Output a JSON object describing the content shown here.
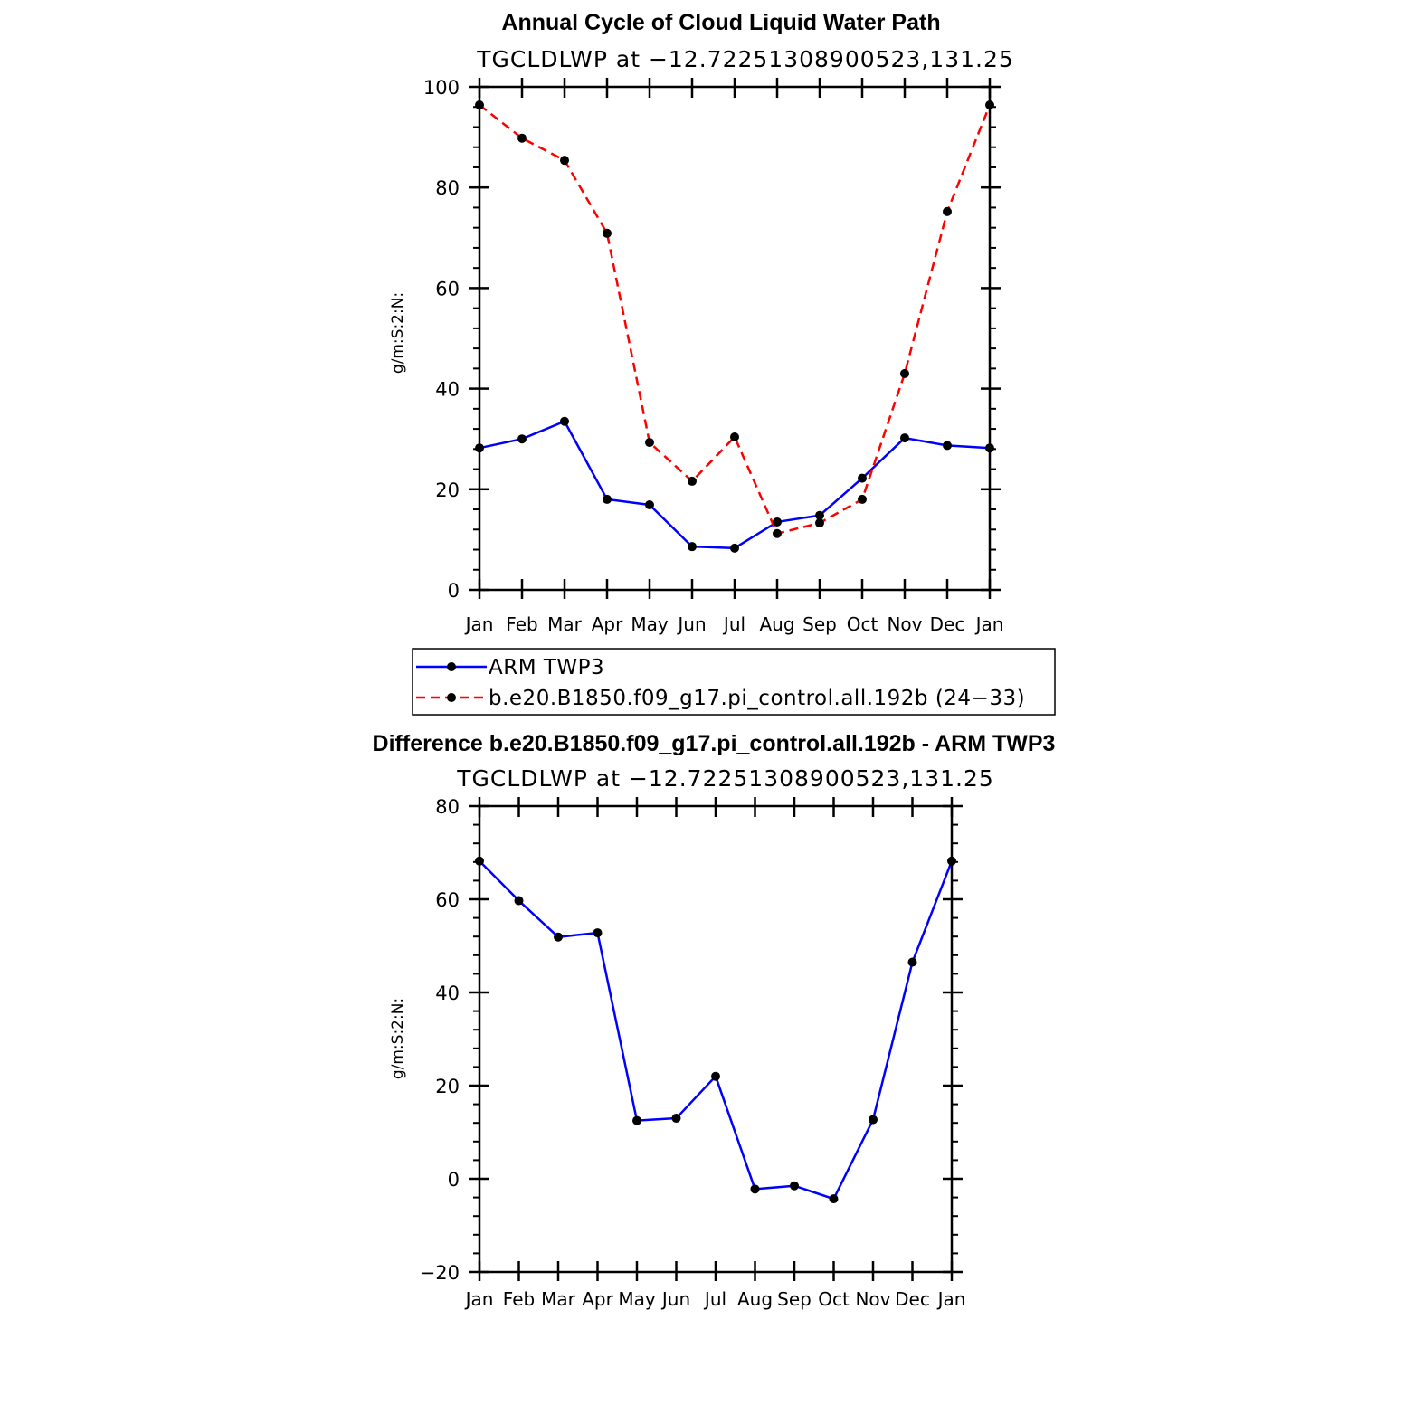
{
  "chart_data": [
    {
      "type": "line",
      "title": "Annual Cycle of Cloud Liquid Water Path",
      "subtitle": "TGCLDLWP at −12.72251308900523,131.25",
      "xlabel": "",
      "ylabel": "g/m:S:2:N:",
      "categories": [
        "Jan",
        "Feb",
        "Mar",
        "Apr",
        "May",
        "Jun",
        "Jul",
        "Aug",
        "Sep",
        "Oct",
        "Nov",
        "Dec",
        "Jan"
      ],
      "ylim": [
        0,
        100
      ],
      "yticks": [
        "0",
        "20",
        "40",
        "60",
        "80",
        "100"
      ],
      "grid": false,
      "legend_position": "below",
      "series": [
        {
          "name": "ARM TWP3",
          "color": "#0000ff",
          "dash": "solid",
          "values": [
            28.2,
            30.0,
            33.5,
            18.0,
            16.9,
            8.6,
            8.3,
            13.5,
            14.8,
            22.2,
            30.2,
            28.7,
            28.2
          ]
        },
        {
          "name": "b.e20.B1850.f09_g17.pi_control.all.192b (24−33)",
          "color": "#ff0000",
          "dash": "dashed",
          "values": [
            96.4,
            89.8,
            85.4,
            70.9,
            29.3,
            21.6,
            30.4,
            11.2,
            13.3,
            18.0,
            43.0,
            75.2,
            96.4
          ]
        }
      ]
    },
    {
      "type": "line",
      "title": "Difference b.e20.B1850.f09_g17.pi_control.all.192b - ARM TWP3",
      "subtitle": "TGCLDLWP at −12.72251308900523,131.25",
      "xlabel": "",
      "ylabel": "g/m:S:2:N:",
      "categories": [
        "Jan",
        "Feb",
        "Mar",
        "Apr",
        "May",
        "Jun",
        "Jul",
        "Aug",
        "Sep",
        "Oct",
        "Nov",
        "Dec",
        "Jan"
      ],
      "ylim": [
        -20,
        80
      ],
      "yticks": [
        "−20",
        "0",
        "20",
        "40",
        "60",
        "80"
      ],
      "grid": false,
      "series": [
        {
          "name": "Difference",
          "color": "#0000ff",
          "dash": "solid",
          "values": [
            68.2,
            59.7,
            51.9,
            52.8,
            12.5,
            13.0,
            22.0,
            -2.2,
            -1.5,
            -4.3,
            12.7,
            46.5,
            68.2
          ]
        }
      ]
    }
  ]
}
